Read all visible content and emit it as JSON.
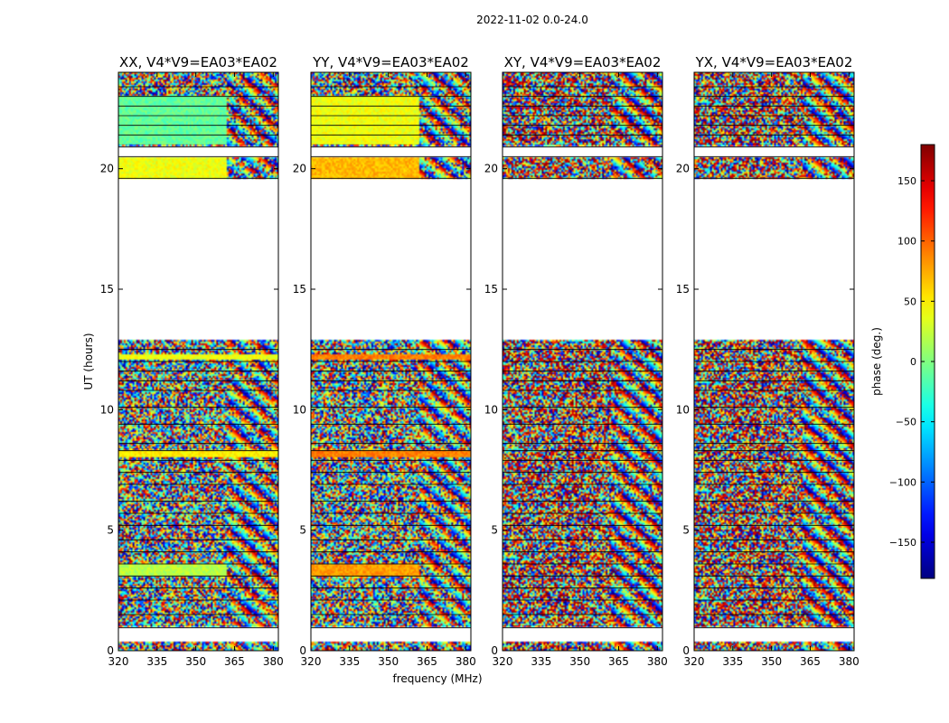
{
  "figure_title": "2022-11-02 0.0-24.0",
  "chart_data": {
    "type": "heatmap",
    "title": "2022-11-02 0.0-24.0",
    "xlabel": "frequency (MHz)",
    "ylabel": "UT (hours)",
    "xlim": [
      320,
      382
    ],
    "ylim": [
      0,
      24
    ],
    "x_ticks": [
      320,
      335,
      350,
      365,
      380
    ],
    "y_ticks": [
      0,
      5,
      10,
      15,
      20
    ],
    "colorbar": {
      "label": "phase (deg.)",
      "range": [
        -180,
        180
      ],
      "ticks": [
        150,
        100,
        50,
        0,
        -50,
        -100,
        -150
      ],
      "tick_labels": [
        "150",
        "100",
        "50",
        "0",
        "−50",
        "−100",
        "−150"
      ],
      "colormap": "jet"
    },
    "panels": [
      {
        "title": "XX, V4*V9=EA03*EA02",
        "key": "XX"
      },
      {
        "title": "YY, V4*V9=EA03*EA02",
        "key": "YY"
      },
      {
        "title": "XY, V4*V9=EA03*EA02",
        "key": "XY"
      },
      {
        "title": "YX, V4*V9=EA03*EA02",
        "key": "YX"
      }
    ],
    "data_ut_ranges": [
      [
        0.0,
        0.35
      ],
      [
        0.95,
        12.9
      ],
      [
        19.6,
        20.5
      ],
      [
        20.9,
        24.0
      ]
    ],
    "flagged_ut_gaps": [
      [
        0.35,
        0.95
      ],
      [
        12.9,
        19.6
      ],
      [
        20.5,
        20.9
      ]
    ],
    "coherent_features": [
      {
        "panel": "XX",
        "ut": [
          3.1,
          3.6
        ],
        "freq": [
          320,
          362
        ],
        "phase": 20
      },
      {
        "panel": "XX",
        "ut": [
          19.6,
          20.5
        ],
        "freq": [
          320,
          362
        ],
        "phase": 40
      },
      {
        "panel": "XX",
        "ut": [
          21.0,
          23.0
        ],
        "freq": [
          320,
          362
        ],
        "phase": -10
      },
      {
        "panel": "XX",
        "ut": [
          8.0,
          8.3
        ],
        "freq": [
          320,
          382
        ],
        "phase": 50
      },
      {
        "panel": "XX",
        "ut": [
          12.1,
          12.3
        ],
        "freq": [
          320,
          382
        ],
        "phase": 40
      },
      {
        "panel": "YY",
        "ut": [
          3.1,
          3.6
        ],
        "freq": [
          320,
          362
        ],
        "phase": 80
      },
      {
        "panel": "YY",
        "ut": [
          19.6,
          20.5
        ],
        "freq": [
          320,
          362
        ],
        "phase": 70
      },
      {
        "panel": "YY",
        "ut": [
          21.0,
          23.0
        ],
        "freq": [
          320,
          362
        ],
        "phase": 40
      },
      {
        "panel": "YY",
        "ut": [
          8.0,
          8.3
        ],
        "freq": [
          320,
          382
        ],
        "phase": 90
      },
      {
        "panel": "YY",
        "ut": [
          12.1,
          12.3
        ],
        "freq": [
          320,
          382
        ],
        "phase": 90
      }
    ]
  }
}
